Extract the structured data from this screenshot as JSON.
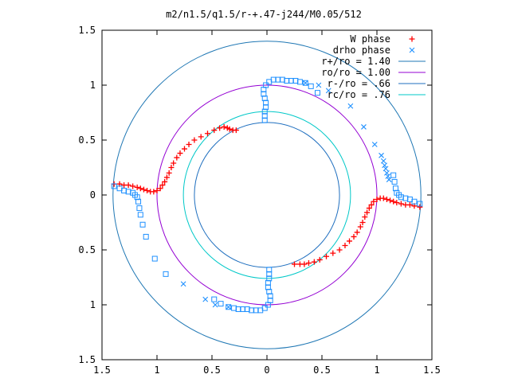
{
  "chart_data": {
    "type": "scatter",
    "title": "m2/n1.5/q1.5/r-+.47-j244/M0.05/512",
    "xlim": [
      -1.5,
      1.5
    ],
    "ylim": [
      -1.5,
      1.5
    ],
    "x_ticks": [
      {
        "value": -1.5,
        "label": "1.5"
      },
      {
        "value": -1.0,
        "label": "1"
      },
      {
        "value": -0.5,
        "label": "0.5"
      },
      {
        "value": 0.0,
        "label": "0"
      },
      {
        "value": 0.5,
        "label": "0.5"
      },
      {
        "value": 1.0,
        "label": "1"
      },
      {
        "value": 1.5,
        "label": "1.5"
      }
    ],
    "y_ticks": [
      {
        "value": 1.5,
        "label": "1.5"
      },
      {
        "value": 1.0,
        "label": "1"
      },
      {
        "value": 0.5,
        "label": "0.5"
      },
      {
        "value": 0.0,
        "label": "0"
      },
      {
        "value": -0.5,
        "label": "0.5"
      },
      {
        "value": -1.0,
        "label": "1"
      },
      {
        "value": -1.5,
        "label": "1.5"
      }
    ],
    "grid": false,
    "legend_position": "top-right",
    "circles": [
      {
        "name": "r+/ro = 1.40",
        "radius": 1.4,
        "color": "#1f77b4"
      },
      {
        "name": "ro/ro = 1.00",
        "radius": 1.0,
        "color": "#9400d3"
      },
      {
        "name": "r-/ro = .66",
        "radius": 0.66,
        "color": "#1f6fbf"
      },
      {
        "name": "rc/ro = .76",
        "radius": 0.76,
        "color": "#00c8c8"
      }
    ],
    "series": [
      {
        "name": "W phase",
        "marker": "plus",
        "color": "#ff0000",
        "points": [
          [
            -1.39,
            0.1
          ],
          [
            -1.34,
            0.1
          ],
          [
            -1.3,
            0.09
          ],
          [
            -1.26,
            0.09
          ],
          [
            -1.22,
            0.08
          ],
          [
            -1.18,
            0.07
          ],
          [
            -1.15,
            0.06
          ],
          [
            -1.12,
            0.05
          ],
          [
            -1.09,
            0.04
          ],
          [
            -1.06,
            0.03
          ],
          [
            -1.03,
            0.03
          ],
          [
            -1.0,
            0.04
          ],
          [
            -0.97,
            0.06
          ],
          [
            -0.95,
            0.09
          ],
          [
            -0.93,
            0.12
          ],
          [
            -0.91,
            0.16
          ],
          [
            -0.89,
            0.2
          ],
          [
            -0.87,
            0.25
          ],
          [
            -0.85,
            0.29
          ],
          [
            -0.82,
            0.34
          ],
          [
            -0.79,
            0.38
          ],
          [
            -0.75,
            0.42
          ],
          [
            -0.71,
            0.46
          ],
          [
            -0.66,
            0.5
          ],
          [
            -0.6,
            0.53
          ],
          [
            -0.54,
            0.56
          ],
          [
            -0.48,
            0.59
          ],
          [
            -0.43,
            0.61
          ],
          [
            -0.39,
            0.62
          ],
          [
            -0.36,
            0.61
          ],
          [
            -0.34,
            0.6
          ],
          [
            -0.31,
            0.59
          ],
          [
            -0.28,
            0.59
          ],
          [
            1.39,
            -0.11
          ],
          [
            1.34,
            -0.1
          ],
          [
            1.3,
            -0.09
          ],
          [
            1.26,
            -0.09
          ],
          [
            1.22,
            -0.08
          ],
          [
            1.18,
            -0.07
          ],
          [
            1.15,
            -0.06
          ],
          [
            1.12,
            -0.05
          ],
          [
            1.09,
            -0.04
          ],
          [
            1.06,
            -0.03
          ],
          [
            1.03,
            -0.03
          ],
          [
            1.0,
            -0.04
          ],
          [
            0.97,
            -0.06
          ],
          [
            0.95,
            -0.09
          ],
          [
            0.93,
            -0.12
          ],
          [
            0.91,
            -0.16
          ],
          [
            0.89,
            -0.2
          ],
          [
            0.87,
            -0.25
          ],
          [
            0.85,
            -0.29
          ],
          [
            0.82,
            -0.34
          ],
          [
            0.79,
            -0.38
          ],
          [
            0.75,
            -0.42
          ],
          [
            0.71,
            -0.46
          ],
          [
            0.66,
            -0.5
          ],
          [
            0.6,
            -0.53
          ],
          [
            0.54,
            -0.56
          ],
          [
            0.48,
            -0.59
          ],
          [
            0.43,
            -0.61
          ],
          [
            0.38,
            -0.62
          ],
          [
            0.34,
            -0.63
          ],
          [
            0.3,
            -0.63
          ],
          [
            0.25,
            -0.63
          ]
        ]
      },
      {
        "name": "drho phase",
        "marker": "cross",
        "color": "#1e90ff",
        "points": [
          [
            -0.76,
            -0.81
          ],
          [
            -0.56,
            -0.95
          ],
          [
            -0.47,
            -1.0
          ],
          [
            -0.35,
            -1.02
          ],
          [
            0.35,
            1.02
          ],
          [
            0.47,
            1.0
          ],
          [
            0.56,
            0.95
          ],
          [
            0.76,
            0.81
          ],
          [
            0.88,
            0.62
          ],
          [
            0.98,
            0.46
          ],
          [
            1.04,
            0.36
          ],
          [
            1.06,
            0.31
          ],
          [
            1.07,
            0.27
          ],
          [
            1.08,
            0.24
          ],
          [
            1.09,
            0.2
          ],
          [
            1.1,
            0.17
          ],
          [
            1.11,
            0.14
          ]
        ]
      },
      {
        "name": "",
        "marker": "square",
        "color": "#1e90ff",
        "points": [
          [
            -0.02,
            0.68
          ],
          [
            -0.02,
            0.72
          ],
          [
            -0.02,
            0.76
          ],
          [
            -0.01,
            0.8
          ],
          [
            -0.01,
            0.84
          ],
          [
            -0.02,
            0.88
          ],
          [
            -0.03,
            0.92
          ],
          [
            -0.03,
            0.96
          ],
          [
            -0.01,
            1.0
          ],
          [
            0.02,
            1.03
          ],
          [
            0.06,
            1.05
          ],
          [
            0.1,
            1.05
          ],
          [
            0.14,
            1.05
          ],
          [
            0.18,
            1.04
          ],
          [
            0.22,
            1.04
          ],
          [
            0.26,
            1.04
          ],
          [
            0.3,
            1.03
          ],
          [
            0.35,
            1.02
          ],
          [
            0.4,
            0.99
          ],
          [
            0.46,
            0.93
          ],
          [
            0.02,
            -0.68
          ],
          [
            0.02,
            -0.72
          ],
          [
            0.02,
            -0.76
          ],
          [
            0.01,
            -0.8
          ],
          [
            0.01,
            -0.84
          ],
          [
            0.02,
            -0.88
          ],
          [
            0.03,
            -0.92
          ],
          [
            0.03,
            -0.96
          ],
          [
            0.01,
            -1.0
          ],
          [
            -0.02,
            -1.03
          ],
          [
            -0.06,
            -1.05
          ],
          [
            -0.1,
            -1.05
          ],
          [
            -0.14,
            -1.05
          ],
          [
            -0.18,
            -1.04
          ],
          [
            -0.22,
            -1.04
          ],
          [
            -0.26,
            -1.04
          ],
          [
            -0.3,
            -1.03
          ],
          [
            -0.35,
            -1.02
          ],
          [
            -0.42,
            -0.99
          ],
          [
            -0.48,
            -0.95
          ],
          [
            -1.39,
            0.08
          ],
          [
            -1.34,
            0.06
          ],
          [
            -1.3,
            0.04
          ],
          [
            -1.26,
            0.03
          ],
          [
            -1.22,
            0.02
          ],
          [
            -1.2,
            0.0
          ],
          [
            -1.18,
            -0.02
          ],
          [
            -1.17,
            -0.06
          ],
          [
            -1.16,
            -0.12
          ],
          [
            -1.15,
            -0.18
          ],
          [
            -1.13,
            -0.27
          ],
          [
            -1.1,
            -0.38
          ],
          [
            -1.02,
            -0.58
          ],
          [
            -0.92,
            -0.72
          ],
          [
            1.39,
            -0.08
          ],
          [
            1.34,
            -0.06
          ],
          [
            1.3,
            -0.04
          ],
          [
            1.26,
            -0.03
          ],
          [
            1.22,
            -0.02
          ],
          [
            1.2,
            0.0
          ],
          [
            1.18,
            0.02
          ],
          [
            1.17,
            0.06
          ],
          [
            1.16,
            0.12
          ],
          [
            1.15,
            0.18
          ]
        ]
      }
    ]
  }
}
